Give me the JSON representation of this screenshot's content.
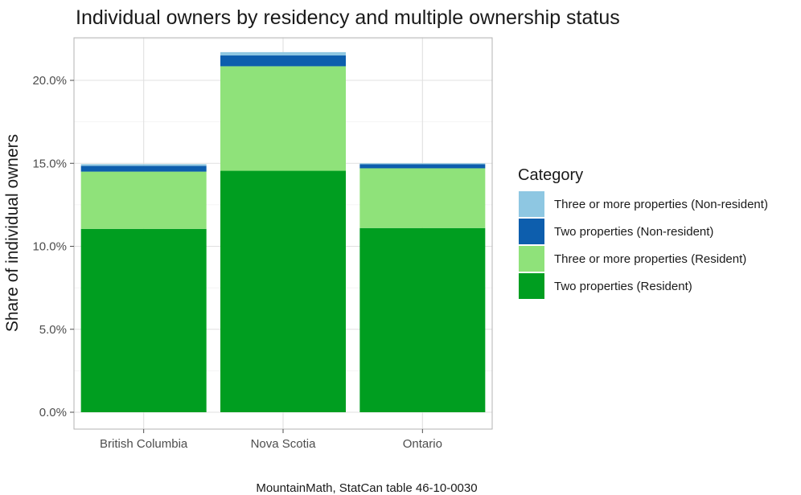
{
  "chart_data": {
    "type": "bar",
    "stacked": true,
    "title": "Individual owners by residency and multiple ownership status",
    "xlabel": "",
    "ylabel": "Share of individual owners",
    "categories": [
      "British Columbia",
      "Nova Scotia",
      "Ontario"
    ],
    "y_ticks": [
      {
        "value": 0,
        "label": "0.0%"
      },
      {
        "value": 5,
        "label": "5.0%"
      },
      {
        "value": 10,
        "label": "10.0%"
      },
      {
        "value": 15,
        "label": "15.0%"
      },
      {
        "value": 20,
        "label": "20.0%"
      }
    ],
    "ylim": [
      0,
      22.6
    ],
    "grid": true,
    "legend_title": "Category",
    "legend_position": "right",
    "series": [
      {
        "name": "Two properties (Resident)",
        "color": "#009e20",
        "values": [
          11.05,
          14.55,
          11.1
        ]
      },
      {
        "name": "Three or more properties (Resident)",
        "color": "#8fe27a",
        "values": [
          3.45,
          6.3,
          3.6
        ]
      },
      {
        "name": "Two properties (Non-resident)",
        "color": "#0d5ead",
        "values": [
          0.35,
          0.65,
          0.25
        ]
      },
      {
        "name": "Three or more properties (Non-resident)",
        "color": "#8ec7e2",
        "values": [
          0.1,
          0.2,
          0.05
        ]
      }
    ],
    "legend_order": [
      3,
      2,
      1,
      0
    ],
    "caption": "MountainMath, StatCan table 46-10-0030"
  }
}
